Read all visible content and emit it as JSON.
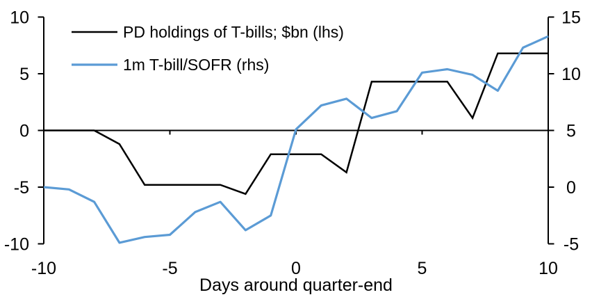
{
  "colors": {
    "pd_line": "#000000",
    "sofr_line": "#5B9BD5",
    "axis": "#000000"
  },
  "chart_data": {
    "type": "line",
    "title": "",
    "xlabel": "Days around quarter-end",
    "grid": false,
    "legend_position": "top-left",
    "x": [
      -10,
      -9,
      -8,
      -7,
      -6,
      -5,
      -4,
      -3,
      -2,
      -1,
      0,
      1,
      2,
      3,
      4,
      5,
      6,
      7,
      8,
      9,
      10
    ],
    "series": [
      {
        "name": "PD holdings of T-bills; $bn (lhs)",
        "axis": "left",
        "color": "#000000",
        "values": [
          0,
          0,
          0,
          -1.2,
          -4.8,
          -4.8,
          -4.8,
          -4.8,
          -5.6,
          -2.1,
          -2.1,
          -2.1,
          -3.7,
          4.3,
          4.3,
          4.3,
          4.3,
          1.1,
          6.8,
          6.8,
          6.8
        ]
      },
      {
        "name": "1m T-bill/SOFR (rhs)",
        "axis": "right",
        "color": "#5B9BD5",
        "values": [
          0,
          -0.2,
          -1.3,
          -4.9,
          -4.4,
          -4.2,
          -2.2,
          -1.3,
          -3.8,
          -2.5,
          5.1,
          7.2,
          7.8,
          6.1,
          6.7,
          10.1,
          10.4,
          9.9,
          8.5,
          12.3,
          13.3
        ]
      }
    ],
    "left_axis": {
      "ticks": [
        10,
        5,
        0,
        -5,
        -10
      ],
      "range": [
        -10,
        10
      ]
    },
    "right_axis": {
      "ticks": [
        15,
        10,
        5,
        0,
        -5
      ],
      "range": [
        -5,
        15
      ]
    },
    "x_axis": {
      "ticks": [
        -10,
        -5,
        0,
        5,
        10
      ],
      "range": [
        -10,
        10
      ]
    }
  }
}
